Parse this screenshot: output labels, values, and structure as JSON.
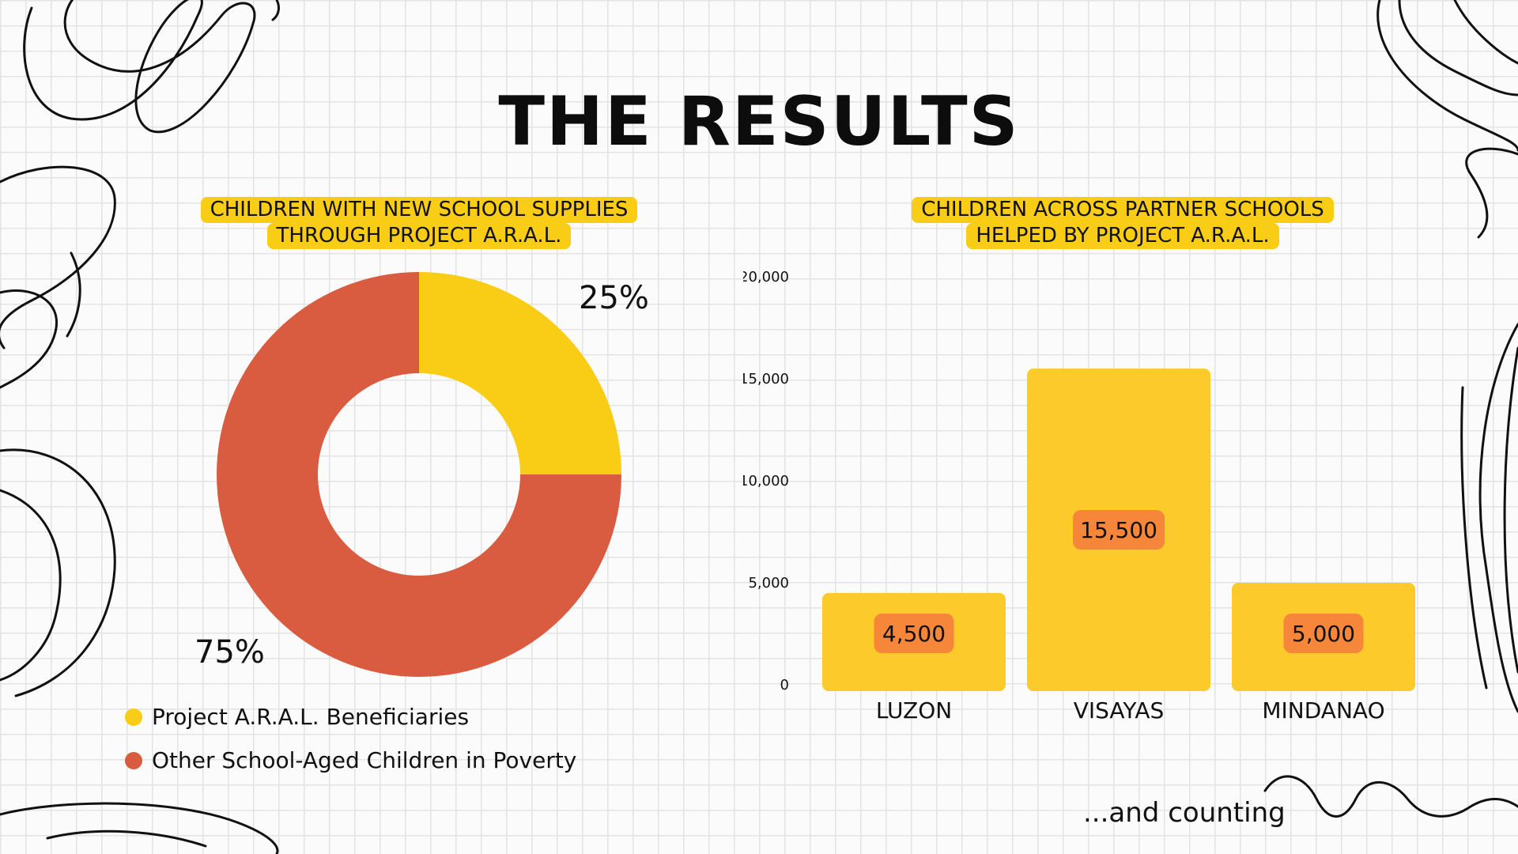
{
  "slide": {
    "title": "THE RESULTS",
    "footer": "...and counting"
  },
  "colors": {
    "yellow": "#f9cc16",
    "bar_yellow": "#fcca2b",
    "red": "#d95c40",
    "label_orange": "#f5863a"
  },
  "chart_data": [
    {
      "type": "pie",
      "title_lines": [
        "CHILDREN WITH NEW SCHOOL SUPPLIES",
        "THROUGH PROJECT A.R.A.L."
      ],
      "donut": true,
      "labels": [
        "Project A.R.A.L. Beneficiaries",
        "Other School-Aged Children in Poverty"
      ],
      "values": [
        25,
        75
      ],
      "value_labels": [
        "25%",
        "75%"
      ],
      "legend": "bottom-left"
    },
    {
      "type": "bar",
      "title_lines": [
        "CHILDREN ACROSS PARTNER SCHOOLS",
        "HELPED BY PROJECT A.R.A.L."
      ],
      "categories": [
        "LUZON",
        "VISAYAS",
        "MINDANAO"
      ],
      "values": [
        4500,
        15500,
        5000
      ],
      "data_labels": [
        "4,500",
        "15,500",
        "5,000"
      ],
      "yticks": [
        0,
        5000,
        10000,
        15000,
        20000
      ],
      "ytick_labels": [
        "0",
        "5,000",
        "10,000",
        "15,000",
        "20,000"
      ],
      "ylim": [
        0,
        20000
      ],
      "grid": false
    }
  ]
}
